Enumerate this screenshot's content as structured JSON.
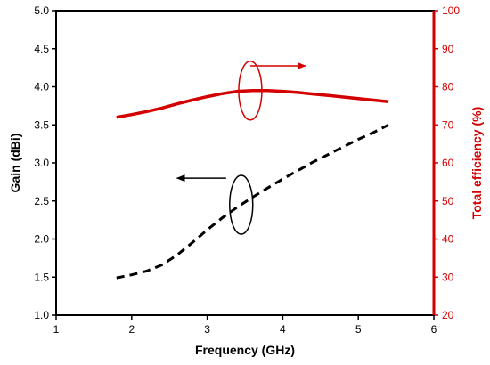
{
  "chart_data": {
    "type": "line",
    "xlabel": "Frequency (GHz)",
    "ylabel_left": "Gain (dBi)",
    "ylabel_right": "Total efficiency (%)",
    "xlim": [
      1,
      6
    ],
    "ylim_left": [
      1.0,
      5.0
    ],
    "ylim_right": [
      20,
      100
    ],
    "xticks": [
      "1",
      "2",
      "3",
      "4",
      "5",
      "6"
    ],
    "yticks_left": [
      "1.0",
      "1.5",
      "2.0",
      "2.5",
      "3.0",
      "3.5",
      "4.0",
      "4.5",
      "5.0"
    ],
    "yticks_right": [
      "20",
      "30",
      "40",
      "50",
      "60",
      "70",
      "80",
      "90",
      "100"
    ],
    "grid": false,
    "colors": {
      "gain": "#000000",
      "efficiency": "#d40000"
    },
    "series": [
      {
        "axis": "left",
        "style": "dashed",
        "x": [
          1.8,
          2.0,
          2.2,
          2.4,
          2.6,
          2.8,
          3.0,
          3.2,
          3.4,
          3.6,
          3.8,
          4.0,
          4.2,
          4.4,
          4.6,
          4.8,
          5.0,
          5.2,
          5.4
        ],
        "values": [
          1.49,
          1.53,
          1.58,
          1.66,
          1.79,
          1.95,
          2.12,
          2.28,
          2.42,
          2.55,
          2.67,
          2.79,
          2.9,
          3.01,
          3.11,
          3.21,
          3.31,
          3.4,
          3.5
        ]
      },
      {
        "axis": "right",
        "style": "solid",
        "x": [
          1.8,
          2.0,
          2.2,
          2.4,
          2.6,
          2.8,
          3.0,
          3.2,
          3.4,
          3.6,
          3.8,
          4.0,
          4.2,
          4.4,
          4.6,
          4.8,
          5.0,
          5.2,
          5.4
        ],
        "values": [
          72.0,
          72.7,
          73.5,
          74.4,
          75.5,
          76.5,
          77.4,
          78.2,
          78.8,
          79.0,
          79.0,
          78.8,
          78.5,
          78.1,
          77.7,
          77.3,
          76.9,
          76.5,
          76.1
        ]
      }
    ],
    "annotations": [
      {
        "series": "left",
        "ellipse_center": [
          3.45,
          2.45
        ],
        "arrow_to": [
          2.6,
          2.8
        ],
        "arrow_from": [
          3.25,
          2.8
        ]
      },
      {
        "series": "right",
        "ellipse_center": [
          3.57,
          79.0
        ],
        "arrow_from": [
          3.57,
          85.5
        ],
        "arrow_to": [
          4.3,
          85.5
        ]
      }
    ]
  }
}
